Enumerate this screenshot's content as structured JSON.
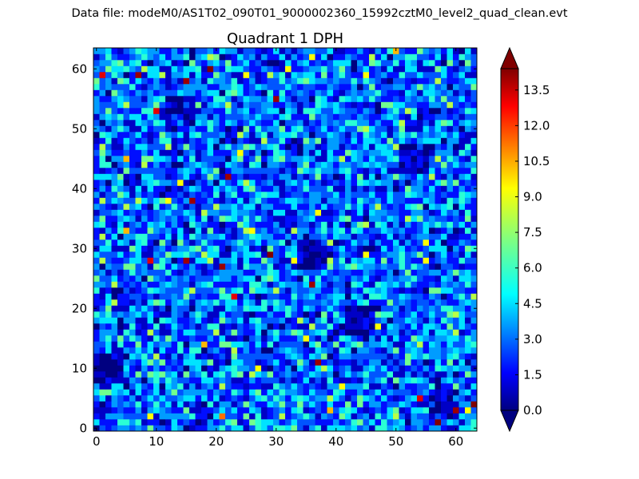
{
  "chart_data": {
    "type": "heatmap",
    "suptitle": "Data file: modeM0/AS1T02_090T01_9000002360_15992cztM0_level2_quad_clean.evt",
    "title": "Quadrant 1 DPH",
    "xlabel": "",
    "ylabel": "",
    "grid_size": [
      64,
      64
    ],
    "xlim": [
      0,
      63.5
    ],
    "ylim": [
      0,
      63.5
    ],
    "x_ticks": [
      0,
      10,
      20,
      30,
      40,
      50,
      60
    ],
    "y_ticks": [
      0,
      10,
      20,
      30,
      40,
      50,
      60
    ],
    "colorbar": {
      "min": 0.0,
      "max": 14.4,
      "ticks": [
        "0.0",
        "1.5",
        "3.0",
        "4.5",
        "6.0",
        "7.5",
        "9.0",
        "10.5",
        "12.0",
        "13.5"
      ],
      "extend": "both",
      "colormap": "jet"
    },
    "typical_mean_counts": 3.5,
    "note_low_regions": [
      {
        "x": 14,
        "y": 53
      },
      {
        "x": 36,
        "y": 29
      },
      {
        "x": 53,
        "y": 45
      },
      {
        "x": 44,
        "y": 18
      },
      {
        "x": 58,
        "y": 4
      },
      {
        "x": 2,
        "y": 10
      }
    ]
  },
  "colors": {
    "jet": [
      "#000080",
      "#0000ff",
      "#0080ff",
      "#00ffff",
      "#80ff80",
      "#ffff00",
      "#ff8000",
      "#ff0000",
      "#800000"
    ]
  }
}
